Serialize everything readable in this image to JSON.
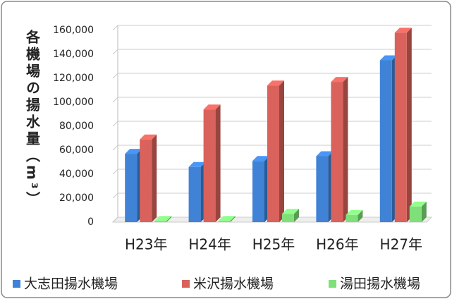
{
  "chart_data": {
    "type": "bar3d",
    "y_label": "各機場の揚水量（m³）",
    "categories": [
      "H23年",
      "H24年",
      "H25年",
      "H26年",
      "H27年"
    ],
    "series": [
      {
        "name": "大志田揚水機場",
        "color": "#3f82d6",
        "values": [
          57000,
          46000,
          51000,
          55000,
          135000
        ]
      },
      {
        "name": "米沢揚水機場",
        "color": "#d9625c",
        "values": [
          69000,
          94000,
          114000,
          117000,
          158000
        ]
      },
      {
        "name": "湯田揚水機場",
        "color": "#7fe07a",
        "values": [
          1000,
          1000,
          7000,
          6000,
          13000
        ]
      }
    ],
    "ylim": [
      0,
      160000
    ],
    "yticks": [
      0,
      {
        "value": 20000,
        "label": "20,000"
      },
      {
        "value": 40000,
        "label": "40,000"
      },
      {
        "value": 60000,
        "label": "60,000"
      },
      {
        "value": 80000,
        "label": "80,000"
      },
      {
        "value": 100000,
        "label": "100,000"
      },
      {
        "value": 120000,
        "label": "120,000"
      },
      {
        "value": 140000,
        "label": "140,000"
      },
      {
        "value": 160000,
        "label": "160,000"
      }
    ],
    "grid": true,
    "legend": "bottom"
  }
}
